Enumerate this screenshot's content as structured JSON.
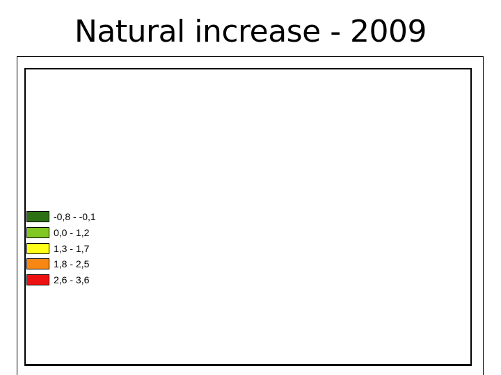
{
  "slide": {
    "title": "Natural increase - 2009"
  },
  "legend": {
    "items": [
      {
        "label": "-0,8 - -0,1",
        "color": "#2E7014"
      },
      {
        "label": "0,0 - 1,2",
        "color": "#82C822"
      },
      {
        "label": "1,3 - 1,7",
        "color": "#FFFF19"
      },
      {
        "label": "1,8 - 2,5",
        "color": "#F68712"
      },
      {
        "label": "2,6 - 3,6",
        "color": "#EE1111"
      }
    ]
  },
  "chart_data": {
    "type": "heatmap",
    "subtype": "choropleth-map-legend",
    "title": "Natural increase - 2009",
    "map_area": "blank",
    "legend_position": "middle-left",
    "classes": [
      {
        "range": "-0,8 - -0,1",
        "min": -0.8,
        "max": -0.1,
        "color": "#2E7014"
      },
      {
        "range": "0,0 - 1,2",
        "min": 0.0,
        "max": 1.2,
        "color": "#82C822"
      },
      {
        "range": "1,3 - 1,7",
        "min": 1.3,
        "max": 1.7,
        "color": "#FFFF19"
      },
      {
        "range": "1,8 - 2,5",
        "min": 1.8,
        "max": 2.5,
        "color": "#F68712"
      },
      {
        "range": "2,6 - 3,6",
        "min": 2.6,
        "max": 3.6,
        "color": "#EE1111"
      }
    ]
  }
}
